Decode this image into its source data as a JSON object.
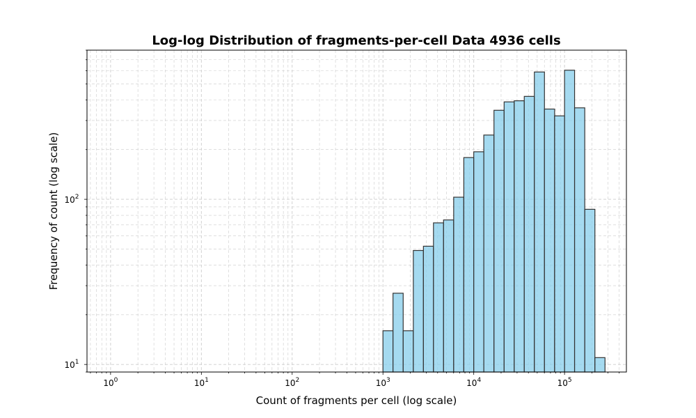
{
  "chart_data": {
    "type": "bar",
    "title": "Log-log Distribution of fragments-per-cell Data 4936 cells",
    "xlabel": "Count of fragments per cell (log scale)",
    "ylabel": "Frequency of count (log scale)",
    "xscale": "log",
    "yscale": "log",
    "xlim": [
      0.55,
      480000
    ],
    "ylim": [
      9,
      800
    ],
    "grid": true,
    "bar_color": "#87CEEB",
    "edge_color": "#333333",
    "x_ticks": [
      {
        "base": "10",
        "exp": "0",
        "value": 1
      },
      {
        "base": "10",
        "exp": "1",
        "value": 10
      },
      {
        "base": "10",
        "exp": "2",
        "value": 100
      },
      {
        "base": "10",
        "exp": "3",
        "value": 1000
      },
      {
        "base": "10",
        "exp": "4",
        "value": 10000
      },
      {
        "base": "10",
        "exp": "5",
        "value": 100000
      }
    ],
    "y_ticks": [
      {
        "base": "10",
        "exp": "1",
        "value": 10
      },
      {
        "base": "10",
        "exp": "2",
        "value": 100
      }
    ],
    "bins": [
      {
        "x0": 1000,
        "x1": 1290,
        "count": 16
      },
      {
        "x0": 1290,
        "x1": 1670,
        "count": 27
      },
      {
        "x0": 1670,
        "x1": 2160,
        "count": 16
      },
      {
        "x0": 2160,
        "x1": 2790,
        "count": 49
      },
      {
        "x0": 2790,
        "x1": 3600,
        "count": 52
      },
      {
        "x0": 3600,
        "x1": 4650,
        "count": 72
      },
      {
        "x0": 4650,
        "x1": 6010,
        "count": 75
      },
      {
        "x0": 6010,
        "x1": 7770,
        "count": 103
      },
      {
        "x0": 7770,
        "x1": 10000,
        "count": 179
      },
      {
        "x0": 10000,
        "x1": 12900,
        "count": 194
      },
      {
        "x0": 12900,
        "x1": 16700,
        "count": 245
      },
      {
        "x0": 16700,
        "x1": 21600,
        "count": 346
      },
      {
        "x0": 21600,
        "x1": 27900,
        "count": 389
      },
      {
        "x0": 27900,
        "x1": 36000,
        "count": 395
      },
      {
        "x0": 36000,
        "x1": 46500,
        "count": 420
      },
      {
        "x0": 46500,
        "x1": 60100,
        "count": 590
      },
      {
        "x0": 60100,
        "x1": 77700,
        "count": 352
      },
      {
        "x0": 77700,
        "x1": 100000,
        "count": 320
      },
      {
        "x0": 100000,
        "x1": 129000,
        "count": 605
      },
      {
        "x0": 129000,
        "x1": 167000,
        "count": 358
      },
      {
        "x0": 167000,
        "x1": 216000,
        "count": 87
      },
      {
        "x0": 216000,
        "x1": 279000,
        "count": 11
      }
    ]
  }
}
